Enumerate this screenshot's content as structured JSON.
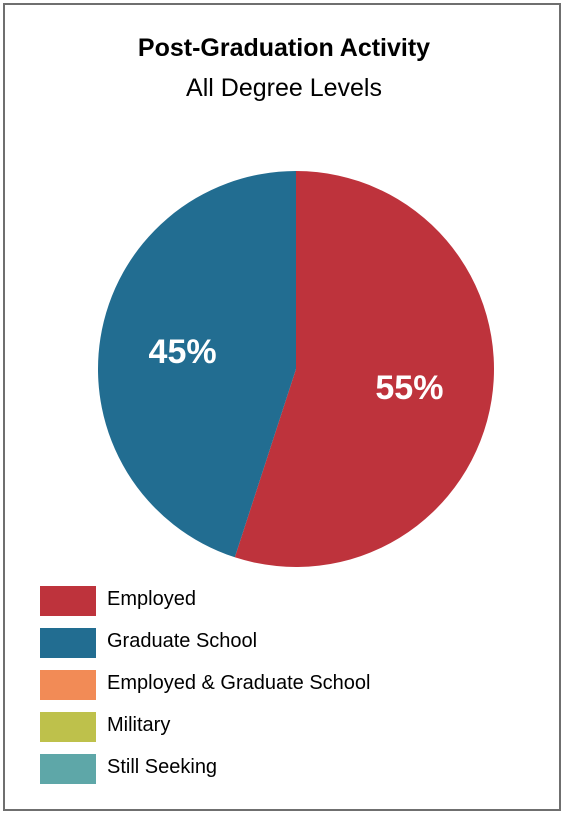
{
  "chart_data": {
    "type": "pie",
    "title": "Post-Graduation Activity",
    "subtitle": "All Degree Levels",
    "slices": [
      {
        "name": "Employed",
        "value": 55,
        "label": "55%",
        "color": "#be333c"
      },
      {
        "name": "Graduate School",
        "value": 45,
        "label": "45%",
        "color": "#226d91"
      },
      {
        "name": "Employed & Graduate School",
        "value": 0,
        "label": "",
        "color": "#f28b56"
      },
      {
        "name": "Military",
        "value": 0,
        "label": "",
        "color": "#bec14b"
      },
      {
        "name": "Still Seeking",
        "value": 0,
        "label": "",
        "color": "#5ea7a8"
      }
    ],
    "legend_position": "bottom-left",
    "grid": false
  }
}
